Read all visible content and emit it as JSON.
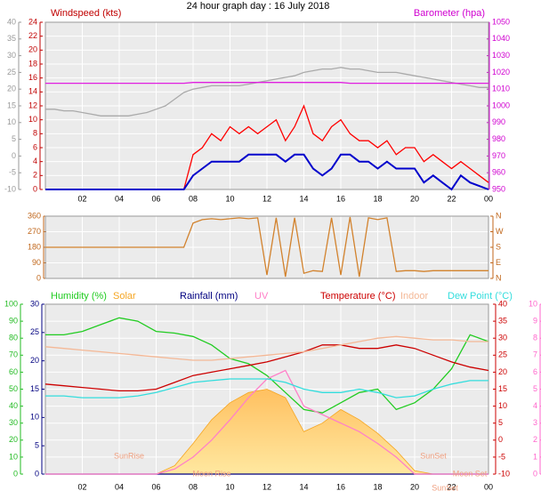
{
  "chart_data": [
    {
      "type": "line",
      "title": "24 hour graph day : 16 July 2018",
      "ylabel": "Windspeed (kts)",
      "y2label": "Barometer (hpa)",
      "x": [
        0,
        0.5,
        1,
        1.5,
        2,
        2.5,
        3,
        3.5,
        4,
        4.5,
        5,
        5.5,
        6,
        6.5,
        7,
        7.5,
        8,
        8.5,
        9,
        9.5,
        10,
        10.5,
        11,
        11.5,
        12,
        12.5,
        13,
        13.5,
        14,
        14.5,
        15,
        15.5,
        16,
        16.5,
        17,
        17.5,
        18,
        18.5,
        19,
        19.5,
        20,
        20.5,
        21,
        21.5,
        22,
        22.5,
        23,
        23.5,
        24
      ],
      "xlim": [
        0,
        24
      ],
      "xticks": [
        {
          "value": 2,
          "label": "02"
        },
        {
          "value": 4,
          "label": "04"
        },
        {
          "value": 6,
          "label": "06"
        },
        {
          "value": 8,
          "label": "08"
        },
        10,
        12,
        14,
        16,
        18,
        20,
        22,
        {
          "value": 24,
          "label": "00"
        }
      ],
      "ylim": [
        0,
        24
      ],
      "yticks": [
        0,
        2,
        4,
        6,
        8,
        10,
        12,
        14,
        16,
        18,
        20,
        22,
        24
      ],
      "y2lim": [
        950,
        1050
      ],
      "y2ticks": [
        950,
        960,
        970,
        980,
        990,
        1000,
        1010,
        1020,
        1030,
        1040,
        1050
      ],
      "y3lim": [
        -10,
        40
      ],
      "y3ticks": [
        -10,
        -5,
        0,
        5,
        10,
        15,
        20,
        25,
        30,
        35,
        40
      ],
      "grid": true,
      "series": [
        {
          "color": "#aaaaaa",
          "axis": "y3",
          "values": [
            14,
            14,
            13.5,
            13.5,
            13,
            12.5,
            12,
            12,
            12,
            12,
            12.5,
            13,
            14,
            15,
            17,
            19,
            20,
            20.5,
            21,
            21,
            21,
            21,
            21.5,
            22,
            22.5,
            23,
            23.5,
            24,
            25,
            25.5,
            26,
            26,
            26.5,
            26,
            26,
            25.5,
            25,
            25,
            25,
            24.5,
            24,
            23.5,
            23,
            22.5,
            22,
            21.5,
            21,
            20.5,
            20.5
          ]
        },
        {
          "color": "#e020e0",
          "axis": "y2",
          "values": [
            1013.5,
            1013.5,
            1013.5,
            1013.5,
            1013.5,
            1013.5,
            1013.5,
            1013.5,
            1013.5,
            1013.5,
            1013.5,
            1013.5,
            1013.5,
            1013.5,
            1013.5,
            1013.5,
            1014,
            1014,
            1014,
            1014,
            1014,
            1014,
            1014,
            1014,
            1014,
            1014,
            1014,
            1014,
            1014,
            1014,
            1014,
            1014,
            1014,
            1013.5,
            1013.5,
            1013.5,
            1013.5,
            1013.5,
            1013.5,
            1013.5,
            1013.5,
            1013.5,
            1013.5,
            1013.5,
            1013.5,
            1013.5,
            1013.5,
            1013.5,
            1013.5
          ]
        },
        {
          "color": "#ff0000",
          "values": [
            0,
            0,
            0,
            0,
            0,
            0,
            0,
            0,
            0,
            0,
            0,
            0,
            0,
            0,
            0,
            0,
            5,
            6,
            8,
            7,
            9,
            8,
            9,
            8,
            9,
            10,
            7,
            9,
            12,
            8,
            7,
            9,
            10,
            8,
            7,
            7,
            6,
            7,
            5,
            6,
            6,
            4,
            5,
            4,
            3,
            4,
            3,
            2,
            1
          ]
        },
        {
          "color": "#0000cc",
          "values": [
            0,
            0,
            0,
            0,
            0,
            0,
            0,
            0,
            0,
            0,
            0,
            0,
            0,
            0,
            0,
            0,
            2,
            3,
            4,
            4,
            4,
            4,
            5,
            5,
            5,
            5,
            4,
            5,
            5,
            3,
            2,
            3,
            5,
            5,
            4,
            4,
            3,
            4,
            3,
            3,
            3,
            1,
            2,
            1,
            0,
            2,
            1,
            0.5,
            0
          ]
        }
      ]
    },
    {
      "type": "line",
      "x": [
        0,
        0.5,
        1,
        1.5,
        2,
        2.5,
        3,
        3.5,
        4,
        4.5,
        5,
        5.5,
        6,
        6.5,
        7,
        7.5,
        8,
        8.5,
        9,
        9.5,
        10,
        10.5,
        11,
        11.5,
        12,
        12.5,
        13,
        13.5,
        14,
        14.5,
        15,
        15.5,
        16,
        16.5,
        17,
        17.5,
        18,
        18.5,
        19,
        19.5,
        20,
        20.5,
        21,
        21.5,
        22,
        22.5,
        23,
        23.5,
        24
      ],
      "xlim": [
        0,
        24
      ],
      "xticks": [
        {
          "value": 2,
          "label": "02"
        },
        {
          "value": 4,
          "label": "04"
        },
        {
          "value": 6,
          "label": "06"
        },
        {
          "value": 8,
          "label": "08"
        },
        10,
        12,
        14,
        16,
        18,
        20,
        22,
        {
          "value": 24,
          "label": "00"
        }
      ],
      "ylim": [
        0,
        360
      ],
      "yticks": [
        0,
        90,
        180,
        270,
        360
      ],
      "y2lim": [
        0,
        360
      ],
      "y2ticks": [
        {
          "value": 0,
          "label": "N"
        },
        {
          "value": 90,
          "label": "E"
        },
        {
          "value": 180,
          "label": "S"
        },
        {
          "value": 270,
          "label": "W"
        },
        {
          "value": 360,
          "label": "N"
        }
      ],
      "grid": true,
      "series": [
        {
          "color": "#d2822d",
          "values": [
            180,
            180,
            180,
            180,
            180,
            180,
            180,
            180,
            180,
            180,
            180,
            180,
            180,
            180,
            180,
            180,
            320,
            340,
            345,
            340,
            345,
            350,
            345,
            350,
            20,
            350,
            10,
            350,
            30,
            45,
            40,
            350,
            20,
            355,
            10,
            350,
            340,
            350,
            40,
            45,
            45,
            40,
            45,
            45,
            45,
            45,
            45,
            45,
            45
          ]
        }
      ]
    },
    {
      "type": "line",
      "x": [
        0,
        1,
        2,
        3,
        4,
        5,
        6,
        7,
        8,
        9,
        10,
        11,
        12,
        13,
        14,
        15,
        16,
        17,
        18,
        19,
        20,
        21,
        22,
        23,
        24
      ],
      "xlim": [
        0,
        24
      ],
      "xticks": [
        {
          "value": 2,
          "label": "02"
        },
        {
          "value": 4,
          "label": "04"
        },
        {
          "value": 6,
          "label": "06"
        },
        {
          "value": 8,
          "label": "08"
        },
        10,
        12,
        14,
        16,
        18,
        20,
        22,
        {
          "value": 24,
          "label": "00"
        }
      ],
      "ylim": [
        0,
        100
      ],
      "yticks": [
        0,
        10,
        20,
        30,
        40,
        50,
        60,
        70,
        80,
        90,
        100
      ],
      "y2lim": [
        -10,
        40
      ],
      "y2ticks": [
        -10,
        -5,
        0,
        5,
        10,
        15,
        20,
        25,
        30,
        35,
        40
      ],
      "y3lim": [
        0,
        30
      ],
      "y3ticks": [
        0,
        5,
        10,
        15,
        20,
        25,
        30
      ],
      "y4lim": [
        0,
        10
      ],
      "y4ticks": [
        0,
        1,
        2,
        3,
        4,
        5,
        6,
        7,
        8,
        9,
        10
      ],
      "grid": true,
      "annotations": [
        "SunRise",
        "SunSet",
        "Moon Rise",
        "Moon Set",
        "SunSet"
      ],
      "series": [
        {
          "name": "Humidity (%)",
          "color": "#22cc22",
          "values": [
            82,
            82,
            84,
            88,
            92,
            90,
            84,
            83,
            81,
            76,
            68,
            65,
            58,
            48,
            38,
            36,
            42,
            48,
            50,
            38,
            42,
            50,
            62,
            82,
            78
          ]
        },
        {
          "name": "Solar",
          "color": "#f5a623",
          "area": true,
          "values": [
            0,
            0,
            0,
            0,
            0,
            0,
            0,
            5,
            18,
            32,
            42,
            48,
            50,
            45,
            25,
            30,
            38,
            32,
            24,
            14,
            2,
            0,
            0,
            0,
            0
          ]
        },
        {
          "name": "Rainfall (mm)",
          "color": "#000080",
          "axis": "y3",
          "values": [
            0,
            0,
            0,
            0,
            0,
            0,
            0,
            0,
            0,
            0,
            0,
            0,
            0,
            0,
            0,
            0,
            0,
            0,
            0,
            0,
            0,
            0,
            0,
            0,
            0
          ]
        },
        {
          "name": "UV",
          "color": "#ff80c8",
          "axis": "y4",
          "values": [
            0,
            0,
            0,
            0,
            0,
            0,
            0,
            0.3,
            1,
            2,
            3.2,
            4.5,
            5.6,
            6.1,
            4,
            3.5,
            3,
            2.5,
            1.8,
            1,
            0,
            0,
            0,
            0,
            0
          ]
        },
        {
          "name": "Temperature (°C)",
          "color": "#cc0000",
          "axis": "y2",
          "values": [
            16.5,
            16,
            15.5,
            15,
            14.5,
            14.5,
            15,
            17,
            19,
            20,
            21,
            22,
            23,
            24.5,
            26,
            28,
            28,
            27,
            27,
            28,
            27,
            25,
            23,
            21.5,
            20.5
          ]
        },
        {
          "name": "Indoor",
          "color": "#f4b896",
          "axis": "y2",
          "values": [
            27.5,
            27,
            26.5,
            26,
            25.5,
            25,
            24.5,
            24,
            23.5,
            23.5,
            24,
            24.5,
            25,
            25.5,
            26,
            27,
            28,
            29,
            30,
            30.5,
            30,
            29.5,
            29.5,
            29,
            29
          ]
        },
        {
          "name": "Dew Point (°C)",
          "color": "#33dddd",
          "axis": "y2",
          "values": [
            13,
            13,
            12.5,
            12.5,
            12.5,
            13,
            14,
            15.5,
            17,
            17.5,
            18,
            18,
            18,
            17,
            15,
            14,
            14,
            15,
            14,
            12.5,
            13,
            15,
            16.5,
            17.5,
            17.5
          ]
        }
      ]
    }
  ]
}
